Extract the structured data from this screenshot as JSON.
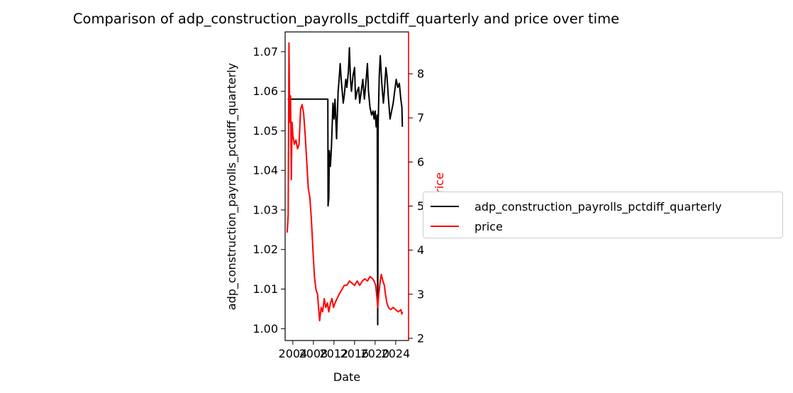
{
  "chart_data": {
    "type": "line",
    "title": "Comparison of adp_construction_payrolls_pctdiff_quarterly and price over time",
    "xlabel": "Date",
    "ylabel_left": "adp_construction_payrolls_pctdiff_quarterly",
    "ylabel_right": "price",
    "xlim": [
      2002.5,
      2026.5
    ],
    "ylim_left": [
      0.997,
      1.075
    ],
    "ylim_right": [
      1.95,
      8.95
    ],
    "x_ticks": [
      "2004",
      "2008",
      "2012",
      "2016",
      "2020",
      "2024"
    ],
    "y_ticks_left": [
      "1.00",
      "1.01",
      "1.02",
      "1.03",
      "1.04",
      "1.05",
      "1.06",
      "1.07"
    ],
    "y_ticks_right": [
      "2",
      "3",
      "4",
      "5",
      "6",
      "7",
      "8"
    ],
    "colors": {
      "left_axis": "#000000",
      "right_axis": "#ff0000"
    },
    "legend_position": "center-left, outside right",
    "series": [
      {
        "name": "adp_construction_payrolls_pctdiff_quarterly",
        "axis": "left",
        "color": "#000000",
        "points": [
          [
            2003.0,
            1.058
          ],
          [
            2010.8,
            1.058
          ],
          [
            2010.85,
            1.031
          ],
          [
            2011.0,
            1.033
          ],
          [
            2011.1,
            1.045
          ],
          [
            2011.3,
            1.041
          ],
          [
            2011.5,
            1.046
          ],
          [
            2011.8,
            1.057
          ],
          [
            2012.0,
            1.053
          ],
          [
            2012.2,
            1.058
          ],
          [
            2012.5,
            1.048
          ],
          [
            2012.8,
            1.06
          ],
          [
            2013.0,
            1.063
          ],
          [
            2013.2,
            1.067
          ],
          [
            2013.4,
            1.063
          ],
          [
            2013.6,
            1.06
          ],
          [
            2013.8,
            1.057
          ],
          [
            2014.0,
            1.059
          ],
          [
            2014.3,
            1.063
          ],
          [
            2014.5,
            1.061
          ],
          [
            2014.8,
            1.065
          ],
          [
            2015.0,
            1.071
          ],
          [
            2015.2,
            1.063
          ],
          [
            2015.4,
            1.06
          ],
          [
            2015.7,
            1.064
          ],
          [
            2016.0,
            1.066
          ],
          [
            2016.2,
            1.058
          ],
          [
            2016.5,
            1.06
          ],
          [
            2016.8,
            1.061
          ],
          [
            2017.0,
            1.057
          ],
          [
            2017.3,
            1.06
          ],
          [
            2017.6,
            1.063
          ],
          [
            2017.9,
            1.058
          ],
          [
            2018.2,
            1.062
          ],
          [
            2018.5,
            1.067
          ],
          [
            2018.7,
            1.06
          ],
          [
            2019.0,
            1.056
          ],
          [
            2019.3,
            1.054
          ],
          [
            2019.6,
            1.055
          ],
          [
            2019.8,
            1.053
          ],
          [
            2020.0,
            1.055
          ],
          [
            2020.2,
            1.051
          ],
          [
            2020.4,
            1.054
          ],
          [
            2020.5,
            1.001
          ],
          [
            2020.6,
            1.052
          ],
          [
            2020.8,
            1.064
          ],
          [
            2021.0,
            1.069
          ],
          [
            2021.3,
            1.062
          ],
          [
            2021.6,
            1.057
          ],
          [
            2021.8,
            1.06
          ],
          [
            2022.1,
            1.066
          ],
          [
            2022.3,
            1.064
          ],
          [
            2022.6,
            1.058
          ],
          [
            2022.9,
            1.053
          ],
          [
            2023.2,
            1.055
          ],
          [
            2023.5,
            1.057
          ],
          [
            2023.8,
            1.06
          ],
          [
            2024.1,
            1.063
          ],
          [
            2024.4,
            1.061
          ],
          [
            2024.7,
            1.062
          ],
          [
            2025.0,
            1.058
          ],
          [
            2025.2,
            1.056
          ],
          [
            2025.3,
            1.051
          ]
        ]
      },
      {
        "name": "price",
        "axis": "right",
        "color": "#ff0000",
        "points": [
          [
            2002.9,
            4.4
          ],
          [
            2003.1,
            4.8
          ],
          [
            2003.25,
            8.7
          ],
          [
            2003.4,
            6.9
          ],
          [
            2003.55,
            7.5
          ],
          [
            2003.7,
            5.6
          ],
          [
            2003.85,
            6.9
          ],
          [
            2004.0,
            6.6
          ],
          [
            2004.3,
            6.4
          ],
          [
            2004.6,
            6.5
          ],
          [
            2004.9,
            6.3
          ],
          [
            2005.2,
            6.4
          ],
          [
            2005.5,
            7.2
          ],
          [
            2005.8,
            7.3
          ],
          [
            2006.1,
            7.1
          ],
          [
            2006.4,
            6.6
          ],
          [
            2006.7,
            6.0
          ],
          [
            2007.0,
            5.4
          ],
          [
            2007.3,
            5.2
          ],
          [
            2007.6,
            4.7
          ],
          [
            2007.9,
            4.0
          ],
          [
            2008.2,
            3.4
          ],
          [
            2008.5,
            3.1
          ],
          [
            2008.8,
            3.0
          ],
          [
            2009.0,
            2.7
          ],
          [
            2009.2,
            2.4
          ],
          [
            2009.5,
            2.7
          ],
          [
            2009.8,
            2.6
          ],
          [
            2010.1,
            2.9
          ],
          [
            2010.4,
            2.7
          ],
          [
            2010.7,
            2.8
          ],
          [
            2011.0,
            2.6
          ],
          [
            2011.3,
            2.8
          ],
          [
            2011.6,
            2.9
          ],
          [
            2011.9,
            2.7
          ],
          [
            2012.2,
            2.8
          ],
          [
            2012.6,
            2.9
          ],
          [
            2013.0,
            3.0
          ],
          [
            2013.5,
            3.1
          ],
          [
            2014.0,
            3.2
          ],
          [
            2014.5,
            3.2
          ],
          [
            2015.0,
            3.3
          ],
          [
            2015.5,
            3.25
          ],
          [
            2016.0,
            3.2
          ],
          [
            2016.5,
            3.3
          ],
          [
            2017.0,
            3.2
          ],
          [
            2017.5,
            3.3
          ],
          [
            2018.0,
            3.35
          ],
          [
            2018.5,
            3.3
          ],
          [
            2019.0,
            3.4
          ],
          [
            2019.5,
            3.35
          ],
          [
            2019.8,
            3.3
          ],
          [
            2020.1,
            3.2
          ],
          [
            2020.3,
            3.0
          ],
          [
            2020.5,
            2.7
          ],
          [
            2020.7,
            3.0
          ],
          [
            2021.0,
            3.3
          ],
          [
            2021.2,
            3.45
          ],
          [
            2021.5,
            3.3
          ],
          [
            2021.8,
            3.2
          ],
          [
            2022.0,
            3.0
          ],
          [
            2022.3,
            2.8
          ],
          [
            2022.6,
            2.7
          ],
          [
            2023.0,
            2.65
          ],
          [
            2023.5,
            2.7
          ],
          [
            2024.0,
            2.65
          ],
          [
            2024.5,
            2.6
          ],
          [
            2025.0,
            2.65
          ],
          [
            2025.2,
            2.55
          ],
          [
            2025.3,
            2.6
          ]
        ]
      }
    ]
  }
}
